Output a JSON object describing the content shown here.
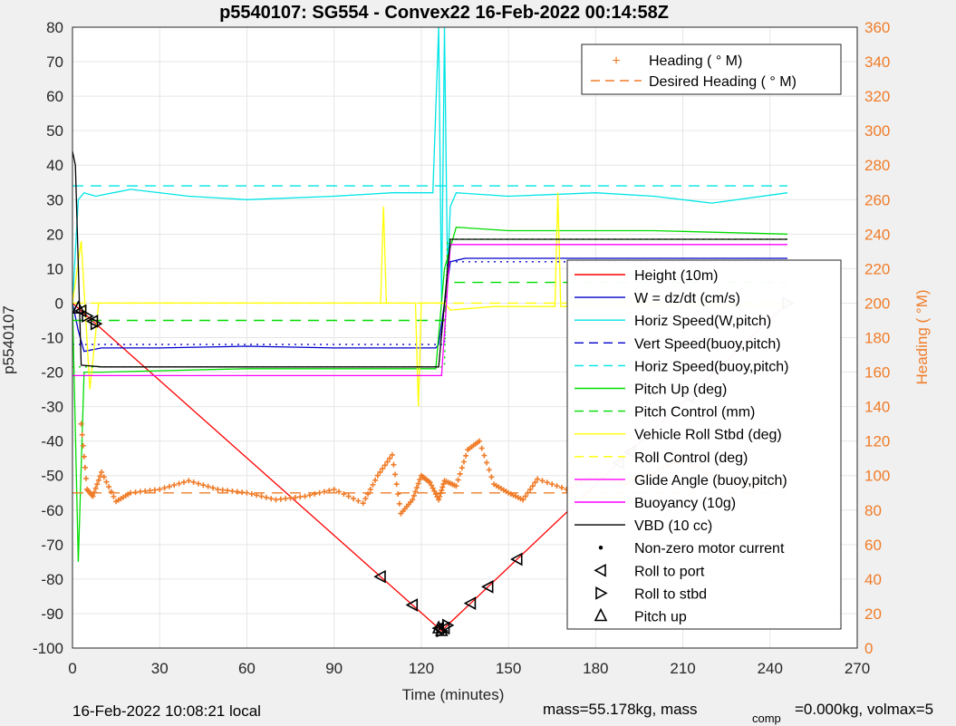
{
  "chart_data": {
    "type": "line",
    "title": "p5540107: SG554 - Convex22 16-Feb-2022 00:14:58Z",
    "xlabel": "Time (minutes)",
    "ylabel_left": "p5540107",
    "ylabel_right": "Heading (  °M)",
    "xlim": [
      0,
      270
    ],
    "ylim_left": [
      -100,
      80
    ],
    "ylim_right": [
      0,
      360
    ],
    "x_ticks": [
      "0",
      "30",
      "60",
      "90",
      "120",
      "150",
      "180",
      "210",
      "240",
      "270"
    ],
    "y_ticks_left": [
      "-100",
      "-90",
      "-80",
      "-70",
      "-60",
      "-50",
      "-40",
      "-30",
      "-20",
      "-10",
      "0",
      "10",
      "20",
      "30",
      "40",
      "50",
      "60",
      "70",
      "80"
    ],
    "y_ticks_right": [
      "0",
      "20",
      "40",
      "60",
      "80",
      "100",
      "120",
      "140",
      "160",
      "180",
      "200",
      "220",
      "240",
      "260",
      "280",
      "300",
      "320",
      "340",
      "360"
    ],
    "grid": true,
    "legend_heading": [
      {
        "label": "Heading (  ° M)",
        "color": "#f07c28"
      },
      {
        "label": "Desired Heading (     ° M)",
        "color": "#f07c28"
      }
    ],
    "legend_main": [
      {
        "label": "Height (10m)",
        "color": "#ff0000"
      },
      {
        "label": "W = dz/dt (cm/s)",
        "color": "#0000cc"
      },
      {
        "label": "Horiz Speed(W,pitch)",
        "color": "#00e5e5"
      },
      {
        "label": "Vert Speed(buoy,pitch)",
        "color": "#0000cc"
      },
      {
        "label": "Horiz Speed(buoy,pitch)",
        "color": "#00e5e5"
      },
      {
        "label": "Pitch Up (deg)",
        "color": "#00dd00"
      },
      {
        "label": "Pitch Control (mm)",
        "color": "#00dd00"
      },
      {
        "label": "Vehicle Roll Stbd (deg)",
        "color": "#ffff00"
      },
      {
        "label": "Roll Control (deg)",
        "color": "#ffff00"
      },
      {
        "label": "Glide Angle (buoy,pitch)",
        "color": "#ff00ff"
      },
      {
        "label": "Buoyancy (10g)",
        "color": "#ff00ff"
      },
      {
        "label": "VBD (10 cc)",
        "color": "#000000"
      },
      {
        "label": "Non-zero motor current",
        "color": "#000000"
      },
      {
        "label": "Roll to port",
        "color": "#000000"
      },
      {
        "label": "Roll to stbd",
        "color": "#000000"
      },
      {
        "label": "Pitch up",
        "color": "#000000"
      }
    ],
    "series": [
      {
        "name": "Height (10m)",
        "color": "#ff0000",
        "style": "solid",
        "x": [
          0,
          127,
          246
        ],
        "y": [
          0,
          -95,
          0
        ]
      },
      {
        "name": "W = dz/dt (cm/s)",
        "color": "#0000cc",
        "style": "solid",
        "x": [
          0,
          2,
          4,
          10,
          30,
          60,
          90,
          110,
          125,
          126,
          130,
          135,
          160,
          200,
          246
        ],
        "y": [
          0,
          -8,
          -14,
          -13,
          -13,
          -12.5,
          -13,
          -13,
          -13,
          -12,
          12,
          13,
          13,
          13,
          13
        ]
      },
      {
        "name": "Horiz Speed(W,pitch)",
        "color": "#00e5e5",
        "style": "solid",
        "x": [
          0,
          2,
          4,
          8,
          20,
          40,
          60,
          90,
          110,
          124,
          126,
          127,
          128,
          129,
          130,
          132,
          150,
          180,
          200,
          220,
          246
        ],
        "y": [
          0,
          30,
          32,
          31,
          33,
          31,
          30,
          31,
          32,
          32,
          80,
          0,
          80,
          10,
          28,
          32,
          31,
          32,
          31,
          29,
          32
        ]
      },
      {
        "name": "Vert Speed(buoy,pitch)",
        "color": "#0000cc",
        "style": "dotted",
        "x": [
          0,
          128,
          129,
          246
        ],
        "y": [
          -12,
          -12,
          12,
          12
        ]
      },
      {
        "name": "Horiz Speed(buoy,pitch)",
        "color": "#00e5e5",
        "style": "dashed",
        "x": [
          0,
          128,
          129,
          246
        ],
        "y": [
          34,
          34,
          34,
          34
        ]
      },
      {
        "name": "Pitch Up (deg)",
        "color": "#00dd00",
        "style": "solid",
        "x": [
          0,
          2,
          4,
          10,
          60,
          110,
          125,
          128,
          132,
          150,
          200,
          246
        ],
        "y": [
          0,
          -75,
          -20,
          -20,
          -19,
          -19,
          -19,
          10,
          22,
          21,
          21,
          20
        ]
      },
      {
        "name": "Pitch Control (mm)",
        "color": "#00dd00",
        "style": "dashed",
        "x": [
          0,
          128,
          129,
          246
        ],
        "y": [
          -5,
          -5,
          6,
          6
        ]
      },
      {
        "name": "Vehicle Roll Stbd (deg)",
        "color": "#ffff00",
        "style": "solid",
        "x": [
          0,
          3,
          6,
          9,
          106,
          107,
          108,
          112,
          118,
          119,
          120,
          127,
          128,
          130,
          145,
          166,
          167,
          168,
          246
        ],
        "y": [
          0,
          18,
          -25,
          0,
          0,
          28,
          0,
          0,
          0,
          -30,
          0,
          0,
          0,
          -2,
          -1,
          -1,
          32,
          -1,
          -1
        ]
      },
      {
        "name": "Roll Control (deg)",
        "color": "#ffff00",
        "style": "dashed",
        "x": [
          0,
          246
        ],
        "y": [
          0,
          0
        ]
      },
      {
        "name": "Glide Angle (buoy,pitch)",
        "color": "#00dd00",
        "style": "dotted",
        "x": [
          0,
          128,
          129,
          246
        ],
        "y": [
          -18.5,
          -18.5,
          18.5,
          18.5
        ]
      },
      {
        "name": "Buoyancy (10g)",
        "color": "#ff00ff",
        "style": "solid",
        "x": [
          0,
          127,
          130,
          246
        ],
        "y": [
          -21,
          -21,
          17,
          17
        ]
      },
      {
        "name": "VBD (10 cc)",
        "color": "#000000",
        "style": "solid",
        "x": [
          0,
          1,
          3,
          10,
          126,
          130,
          246
        ],
        "y": [
          44,
          40,
          -18,
          -18.5,
          -18.5,
          18.5,
          18.5
        ]
      },
      {
        "name": "Desired Heading (     ° M)",
        "axis": "right",
        "color": "#f07c28",
        "style": "dashed",
        "x": [
          0,
          246
        ],
        "y": [
          90,
          90
        ]
      },
      {
        "name": "Heading (  ° M)",
        "axis": "right",
        "color": "#f07c28",
        "style": "marker",
        "x": [
          3,
          5,
          7,
          10,
          15,
          20,
          30,
          40,
          50,
          60,
          70,
          80,
          90,
          100,
          105,
          110,
          113,
          117,
          120,
          123,
          126,
          128,
          132,
          136,
          140,
          145,
          150,
          155,
          160,
          170,
          180,
          190,
          200,
          210,
          220,
          230,
          240,
          246
        ],
        "y": [
          130,
          92,
          88,
          102,
          85,
          90,
          92,
          97,
          92,
          90,
          86,
          88,
          92,
          84,
          100,
          112,
          78,
          86,
          100,
          96,
          86,
          97,
          94,
          115,
          120,
          95,
          90,
          86,
          98,
          92,
          100,
          95,
          102,
          110,
          100,
          95,
          96,
          95
        ]
      }
    ],
    "events": {
      "roll_to_port": [
        3,
        7,
        106,
        117,
        126,
        128,
        137,
        143,
        153,
        188,
        192,
        212
      ],
      "roll_to_stbd": [
        5,
        8,
        127,
        129,
        246
      ],
      "pitch_up": [
        2,
        126,
        127
      ]
    },
    "footer_left": "16-Feb-2022 10:08:21 local",
    "footer_right": "mass=55.178kg, mass",
    "footer_right_sub": "comp",
    "footer_right_end": "=0.000kg, volmax=5"
  }
}
